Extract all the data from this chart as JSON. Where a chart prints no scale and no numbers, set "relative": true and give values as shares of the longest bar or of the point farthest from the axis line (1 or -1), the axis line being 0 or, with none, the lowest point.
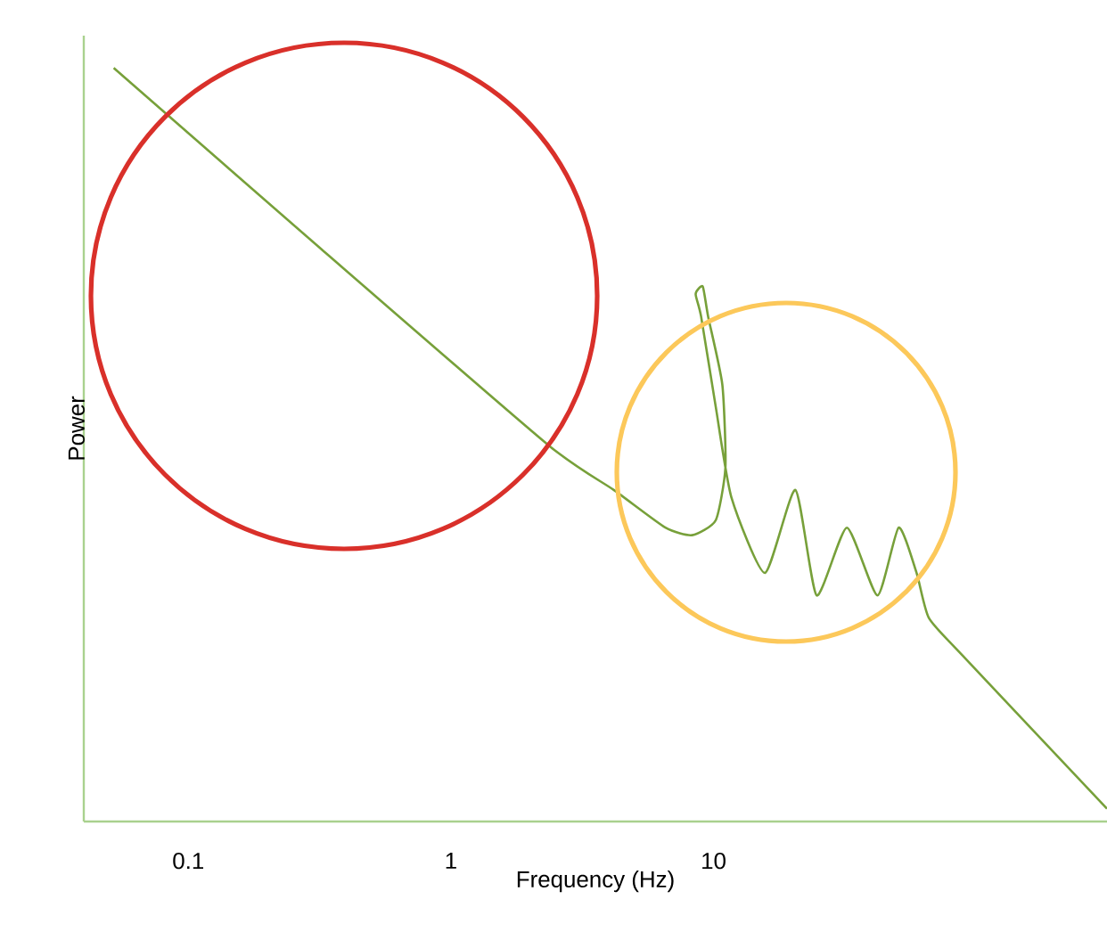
{
  "chart_data": {
    "type": "line",
    "xlabel": "Frequency (Hz)",
    "ylabel": "Power",
    "log": "x",
    "relative": true,
    "xlim": [
      0.04,
      315
    ],
    "xticks": [
      0.1,
      1,
      10
    ],
    "series": [
      {
        "color": "#77a03a",
        "x": [
          0.052,
          0.32,
          2.34,
          4.17,
          6.56,
          8.29,
          10.2,
          11.1,
          10.8,
          9.54,
          9.1,
          8.55,
          8.97,
          10.2,
          11.7,
          15.7,
          20.5,
          24.7,
          32.2,
          42.1,
          50.7,
          59.3,
          66.1,
          88.9,
          315
        ],
        "values": [
          1.0,
          0.76,
          0.5,
          0.44,
          0.39,
          0.38,
          0.4,
          0.47,
          0.58,
          0.67,
          0.71,
          0.7,
          0.67,
          0.55,
          0.43,
          0.33,
          0.44,
          0.3,
          0.39,
          0.3,
          0.39,
          0.33,
          0.27,
          0.22,
          0.017
        ]
      }
    ]
  }
}
